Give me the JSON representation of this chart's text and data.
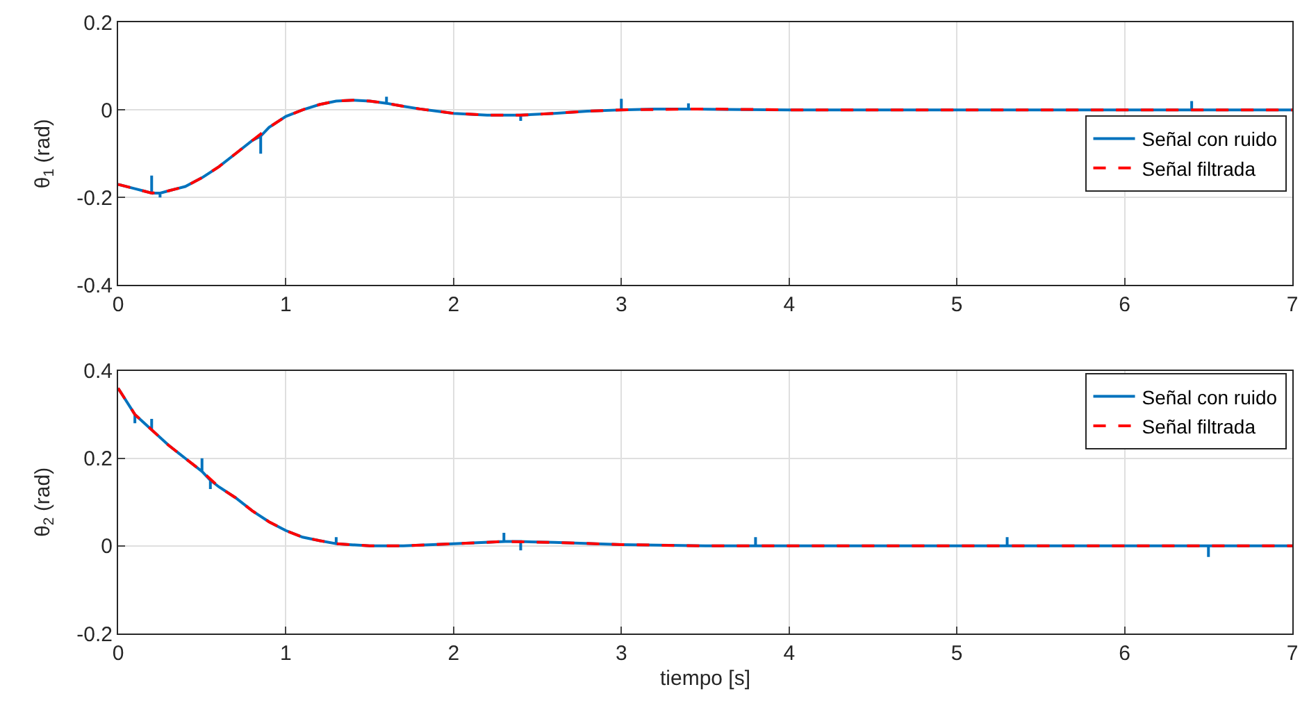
{
  "chart_data": [
    {
      "type": "line",
      "ylabel": "θ$_{1}$ (rad)",
      "xlim": [
        0,
        7
      ],
      "xticks": [
        0,
        1,
        2,
        3,
        4,
        5,
        6,
        7
      ],
      "ylim": [
        -0.4,
        0.2
      ],
      "yticks": [
        -0.4,
        -0.2,
        0,
        0.2
      ],
      "grid": true,
      "legend": "right",
      "line_style": "solid",
      "series": [
        {
          "name": "Señal con ruido",
          "color": "#0072bd",
          "x": [
            0,
            0.1,
            0.15,
            0.2,
            0.2,
            0.2,
            0.25,
            0.25,
            0.25,
            0.3,
            0.4,
            0.5,
            0.6,
            0.7,
            0.8,
            0.85,
            0.85,
            0.85,
            0.9,
            1.0,
            1.1,
            1.2,
            1.3,
            1.4,
            1.5,
            1.6,
            1.6,
            1.6,
            1.7,
            1.8,
            1.9,
            2.0,
            2.2,
            2.4,
            2.4,
            2.4,
            2.6,
            2.8,
            3.0,
            3.0,
            3.0,
            3.2,
            3.4,
            3.4,
            3.4,
            3.6,
            4.0,
            4.5,
            5.0,
            5.5,
            6.0,
            6.4,
            6.4,
            6.4,
            6.6,
            7.0
          ],
          "values": [
            -0.17,
            -0.18,
            -0.185,
            -0.19,
            -0.15,
            -0.19,
            -0.19,
            -0.2,
            -0.19,
            -0.185,
            -0.175,
            -0.155,
            -0.13,
            -0.1,
            -0.07,
            -0.06,
            -0.1,
            -0.06,
            -0.04,
            -0.015,
            0.0,
            0.012,
            0.02,
            0.022,
            0.02,
            0.015,
            0.03,
            0.015,
            0.008,
            0.002,
            -0.003,
            -0.008,
            -0.012,
            -0.012,
            -0.025,
            -0.012,
            -0.008,
            -0.003,
            0.0,
            0.025,
            0.0,
            0.002,
            0.002,
            0.015,
            0.002,
            0.001,
            0.0,
            0.0,
            0.0,
            0.0,
            0.0,
            0.0,
            0.02,
            0.0,
            0.0,
            0.0
          ]
        },
        {
          "name": "Señal filtrada",
          "color": "#ff0000",
          "line_style": "dashed",
          "x": [
            0,
            0.1,
            0.2,
            0.3,
            0.4,
            0.5,
            0.6,
            0.7,
            0.8,
            0.9,
            1.0,
            1.1,
            1.2,
            1.3,
            1.4,
            1.5,
            1.6,
            1.7,
            1.8,
            1.9,
            2.0,
            2.2,
            2.4,
            2.6,
            2.8,
            3.0,
            3.5,
            4.0,
            5.0,
            6.0,
            7.0
          ],
          "values": [
            -0.17,
            -0.18,
            -0.19,
            -0.185,
            -0.175,
            -0.155,
            -0.13,
            -0.1,
            -0.07,
            -0.04,
            -0.015,
            0.0,
            0.012,
            0.02,
            0.022,
            0.02,
            0.015,
            0.008,
            0.002,
            -0.003,
            -0.008,
            -0.012,
            -0.012,
            -0.008,
            -0.003,
            0.0,
            0.002,
            0.0,
            0.0,
            0.0,
            0.0
          ]
        }
      ]
    },
    {
      "type": "line",
      "xlabel": "tiempo [s]",
      "ylabel": "θ$_{2}$ (rad)",
      "xlim": [
        0,
        7
      ],
      "xticks": [
        0,
        1,
        2,
        3,
        4,
        5,
        6,
        7
      ],
      "ylim": [
        -0.2,
        0.4
      ],
      "yticks": [
        -0.2,
        0,
        0.2,
        0.4
      ],
      "grid": true,
      "legend": "top right",
      "line_style": "solid",
      "series": [
        {
          "name": "Señal con ruido",
          "color": "#0072bd",
          "x": [
            0,
            0.1,
            0.1,
            0.1,
            0.2,
            0.2,
            0.2,
            0.3,
            0.4,
            0.5,
            0.5,
            0.5,
            0.55,
            0.55,
            0.55,
            0.6,
            0.7,
            0.8,
            0.9,
            1.0,
            1.1,
            1.2,
            1.3,
            1.3,
            1.3,
            1.5,
            1.7,
            2.0,
            2.3,
            2.3,
            2.3,
            2.4,
            2.4,
            2.4,
            2.6,
            3.0,
            3.5,
            3.8,
            3.8,
            3.8,
            4.0,
            4.5,
            5.0,
            5.3,
            5.3,
            5.3,
            5.5,
            6.0,
            6.5,
            6.5,
            6.5,
            7.0
          ],
          "values": [
            0.36,
            0.3,
            0.28,
            0.3,
            0.265,
            0.29,
            0.265,
            0.23,
            0.2,
            0.17,
            0.2,
            0.17,
            0.15,
            0.13,
            0.15,
            0.135,
            0.11,
            0.08,
            0.055,
            0.035,
            0.02,
            0.012,
            0.005,
            0.02,
            0.005,
            0.0,
            0.0,
            0.005,
            0.01,
            0.03,
            0.01,
            0.01,
            -0.01,
            0.01,
            0.008,
            0.003,
            0.0,
            0.0,
            0.02,
            0.0,
            0.0,
            0.0,
            0.0,
            0.0,
            0.02,
            0.0,
            0.0,
            0.0,
            0.0,
            -0.025,
            0.0,
            0.0
          ]
        },
        {
          "name": "Señal filtrada",
          "color": "#ff0000",
          "line_style": "dashed",
          "x": [
            0,
            0.1,
            0.2,
            0.3,
            0.4,
            0.5,
            0.6,
            0.7,
            0.8,
            0.9,
            1.0,
            1.1,
            1.2,
            1.3,
            1.5,
            1.7,
            2.0,
            2.3,
            2.6,
            3.0,
            3.5,
            4.0,
            5.0,
            6.0,
            7.0
          ],
          "values": [
            0.36,
            0.3,
            0.265,
            0.23,
            0.2,
            0.17,
            0.135,
            0.11,
            0.08,
            0.055,
            0.035,
            0.02,
            0.012,
            0.005,
            0.0,
            0.0,
            0.005,
            0.01,
            0.008,
            0.003,
            0.0,
            0.0,
            0.0,
            0.0,
            0.0
          ]
        }
      ]
    }
  ]
}
